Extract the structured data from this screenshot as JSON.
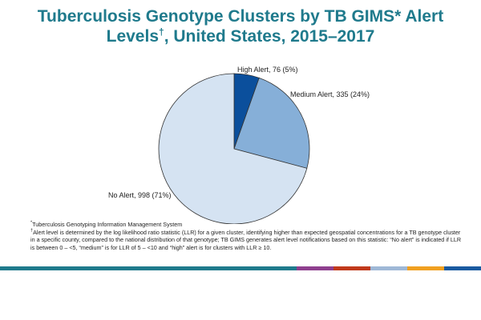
{
  "slide": {
    "title_line1": "Tuberculosis Genotype Clusters by TB GIMS* Alert",
    "title_line2_pre": "Levels",
    "title_line2_sup": "†",
    "title_line2_post": ", United States, 2015–2017",
    "footnote1_mark": "*",
    "footnote1": "Tuberculosis Genotyping Information Management System",
    "footnote2_mark": "†",
    "footnote2": "Alert level is determined by the log likelihood ratio statistic (LLR) for a given cluster, identifying higher than expected geospatial concentrations for a TB genotype cluster in a specific county, compared to the national distribution of that genotype; TB GIMS generates alert level notifications based on this statistic: “No alert” is indicated if LLR is between 0 – <5, “medium” is for LLR of 5 – <10 and “high” alert is for clusters with LLR ≥ 10.",
    "colors": {
      "title": "#1f7a8c",
      "bar": "#1f7a8c",
      "accents": [
        "#8e3f8e",
        "#c0391b",
        "#9fb8d6",
        "#f0a020",
        "#1a5aa0"
      ]
    }
  },
  "chart_data": {
    "type": "pie",
    "slices": [
      {
        "label": "High Alert, 76 (5%)",
        "name": "High Alert",
        "value": 76,
        "percent": 5,
        "color": "#0b4f9c"
      },
      {
        "label": "Medium Alert, 335 (24%)",
        "name": "Medium Alert",
        "value": 335,
        "percent": 24,
        "color": "#86afd8"
      },
      {
        "label": "No Alert, 998 (71%)",
        "name": "No Alert",
        "value": 998,
        "percent": 71,
        "color": "#d5e3f2"
      }
    ]
  }
}
